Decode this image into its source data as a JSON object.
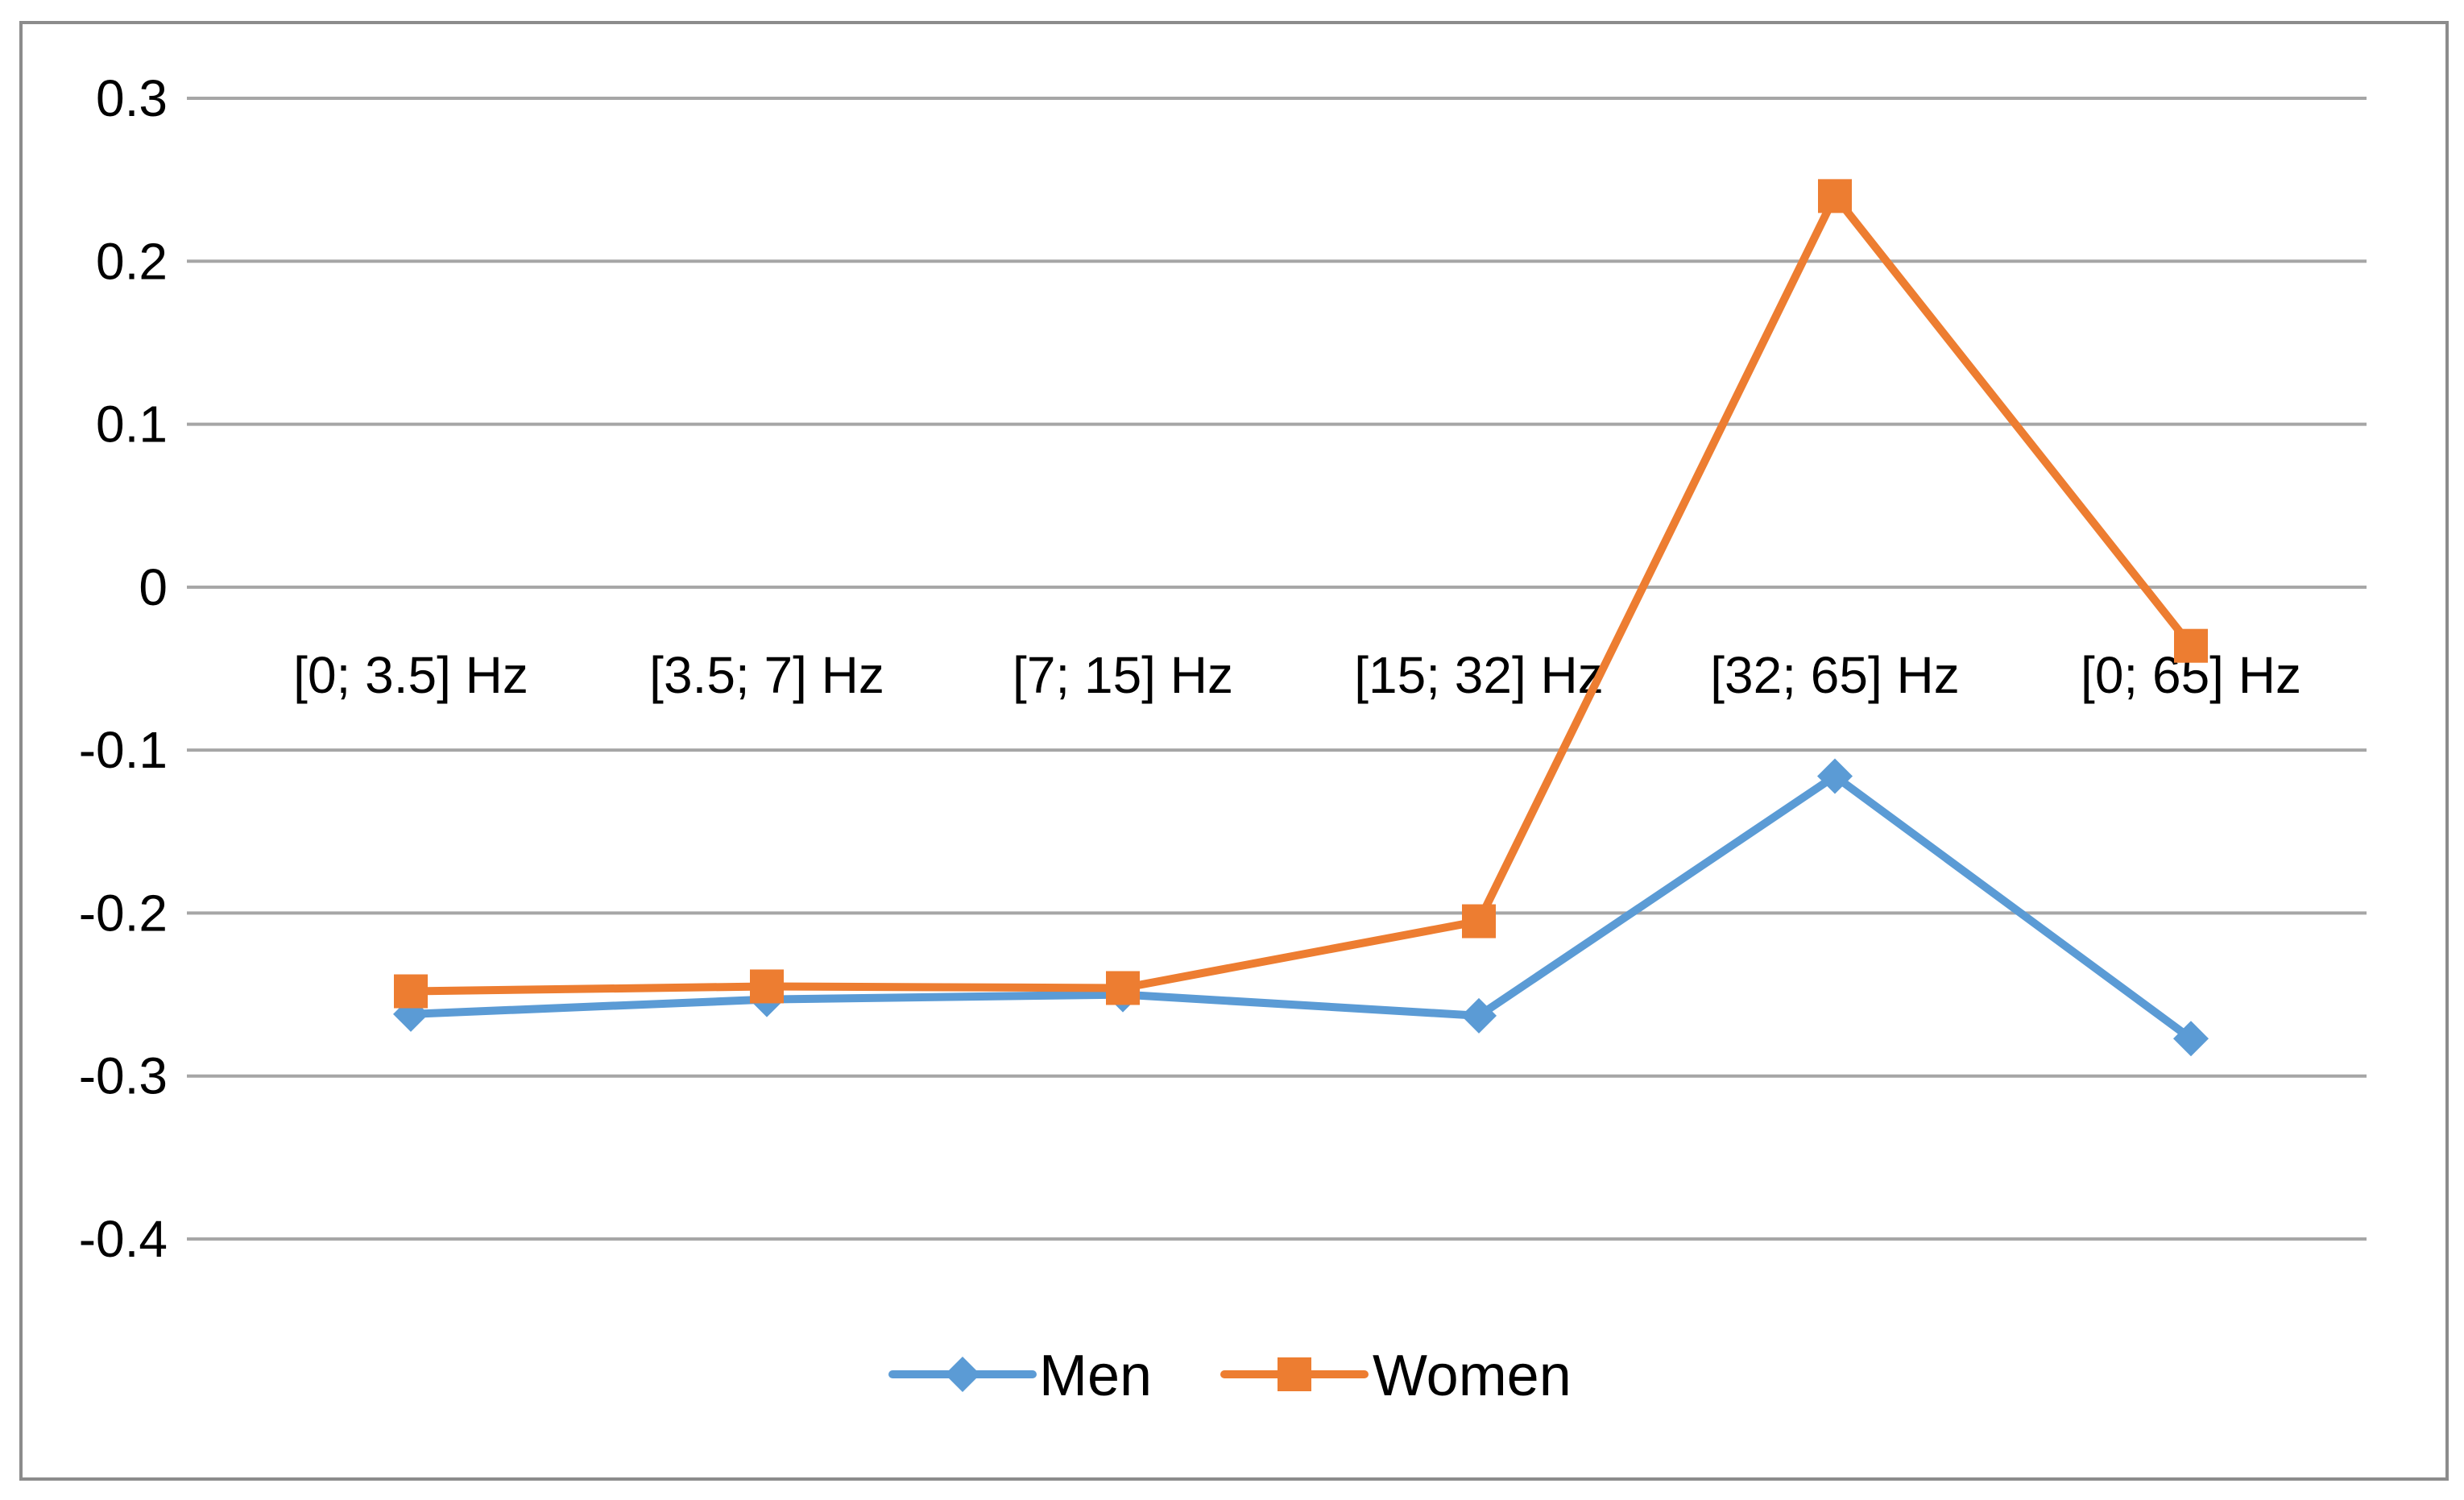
{
  "chart_data": {
    "type": "line",
    "title": "",
    "xlabel": "",
    "ylabel": "",
    "categories": [
      "[0; 3.5] Hz",
      "[3.5; 7] Hz",
      "[7; 15] Hz",
      "[15; 32] Hz",
      "[32; 65] Hz",
      "[0; 65] Hz"
    ],
    "series": [
      {
        "name": "Men",
        "color": "#5b9bd5",
        "marker": "diamond",
        "values": [
          -0.262,
          -0.253,
          -0.25,
          -0.263,
          -0.116,
          -0.277
        ]
      },
      {
        "name": "Women",
        "color": "#ed7d31",
        "marker": "square",
        "values": [
          -0.248,
          -0.245,
          -0.246,
          -0.205,
          0.24,
          -0.036
        ]
      }
    ],
    "ylim": [
      -0.4,
      0.3
    ],
    "yticks": [
      "0.3",
      "0.2",
      "0.1",
      "0",
      "-0.1",
      "-0.2",
      "-0.3",
      "-0.4"
    ],
    "ytick_values": [
      0.3,
      0.2,
      0.1,
      0,
      -0.1,
      -0.2,
      -0.3,
      -0.4
    ],
    "grid": true,
    "legend_position": "bottom-center"
  }
}
